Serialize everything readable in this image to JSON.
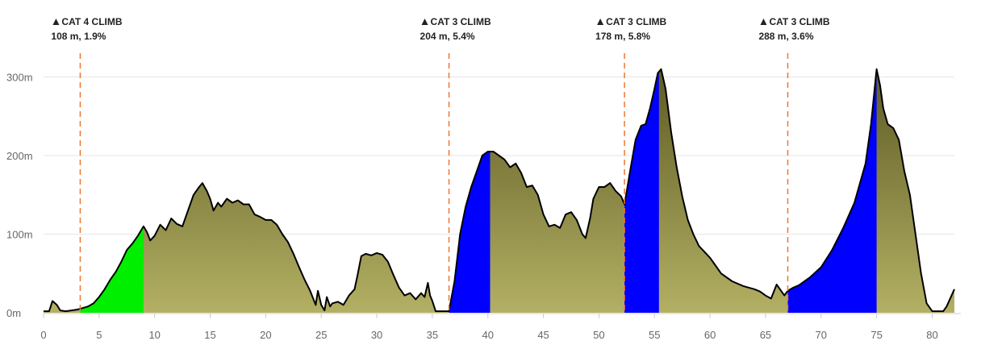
{
  "chart_data": {
    "type": "area",
    "title": "",
    "xlabel": "",
    "ylabel": "",
    "x_unit": "km",
    "y_unit": "m",
    "xlim": [
      0,
      82
    ],
    "ylim": [
      0,
      340
    ],
    "x_ticks": [
      0,
      5,
      10,
      15,
      20,
      25,
      30,
      35,
      40,
      45,
      50,
      55,
      60,
      65,
      70,
      75,
      80
    ],
    "y_ticks": [
      0,
      100,
      200,
      300
    ],
    "y_tick_labels": [
      "0m",
      "100m",
      "200m",
      "300m"
    ],
    "grid": true,
    "colors": {
      "base_fill_top": "#5e5b24",
      "base_fill_bottom": "#b3b064",
      "outline": "#000000",
      "cat4_fill": "#00ee00",
      "cat3_fill": "#0000ff",
      "marker_line": "#ee7733",
      "grid": "#e6e6e6",
      "axis": "#cccccc"
    },
    "elevation_profile": [
      [
        0,
        2
      ],
      [
        0.5,
        2
      ],
      [
        0.8,
        15
      ],
      [
        1.2,
        10
      ],
      [
        1.5,
        3
      ],
      [
        2,
        2
      ],
      [
        3,
        4
      ],
      [
        3.3,
        5
      ],
      [
        4,
        8
      ],
      [
        4.5,
        12
      ],
      [
        5,
        20
      ],
      [
        5.5,
        30
      ],
      [
        6,
        42
      ],
      [
        6.5,
        52
      ],
      [
        7,
        65
      ],
      [
        7.5,
        80
      ],
      [
        8,
        88
      ],
      [
        8.5,
        98
      ],
      [
        9,
        110
      ],
      [
        9.3,
        103
      ],
      [
        9.6,
        92
      ],
      [
        10,
        98
      ],
      [
        10.5,
        112
      ],
      [
        11,
        105
      ],
      [
        11.5,
        120
      ],
      [
        12,
        113
      ],
      [
        12.5,
        110
      ],
      [
        13,
        130
      ],
      [
        13.5,
        150
      ],
      [
        14,
        160
      ],
      [
        14.3,
        165
      ],
      [
        14.7,
        155
      ],
      [
        15,
        145
      ],
      [
        15.3,
        130
      ],
      [
        15.7,
        140
      ],
      [
        16,
        135
      ],
      [
        16.5,
        145
      ],
      [
        17,
        140
      ],
      [
        17.5,
        143
      ],
      [
        18,
        138
      ],
      [
        18.5,
        138
      ],
      [
        19,
        125
      ],
      [
        19.5,
        122
      ],
      [
        20,
        118
      ],
      [
        20.5,
        118
      ],
      [
        21,
        112
      ],
      [
        21.5,
        100
      ],
      [
        22,
        90
      ],
      [
        22.5,
        75
      ],
      [
        23,
        58
      ],
      [
        23.5,
        42
      ],
      [
        24,
        28
      ],
      [
        24.5,
        10
      ],
      [
        24.7,
        28
      ],
      [
        25,
        10
      ],
      [
        25.3,
        3
      ],
      [
        25.5,
        20
      ],
      [
        25.8,
        8
      ],
      [
        26,
        12
      ],
      [
        26.5,
        14
      ],
      [
        27,
        10
      ],
      [
        27.5,
        22
      ],
      [
        28,
        30
      ],
      [
        28.3,
        50
      ],
      [
        28.6,
        72
      ],
      [
        29,
        75
      ],
      [
        29.5,
        73
      ],
      [
        30,
        76
      ],
      [
        30.5,
        74
      ],
      [
        31,
        65
      ],
      [
        31.5,
        48
      ],
      [
        32,
        32
      ],
      [
        32.5,
        22
      ],
      [
        33,
        25
      ],
      [
        33.5,
        17
      ],
      [
        34,
        25
      ],
      [
        34.3,
        20
      ],
      [
        34.6,
        38
      ],
      [
        34.8,
        22
      ],
      [
        35,
        15
      ],
      [
        35.3,
        2
      ],
      [
        36,
        2
      ],
      [
        36.5,
        2
      ],
      [
        37,
        40
      ],
      [
        37.5,
        100
      ],
      [
        38,
        135
      ],
      [
        38.5,
        160
      ],
      [
        39,
        180
      ],
      [
        39.5,
        200
      ],
      [
        40,
        205
      ],
      [
        40.5,
        205
      ],
      [
        41,
        200
      ],
      [
        41.5,
        195
      ],
      [
        42,
        185
      ],
      [
        42.5,
        190
      ],
      [
        43,
        178
      ],
      [
        43.5,
        160
      ],
      [
        44,
        162
      ],
      [
        44.5,
        150
      ],
      [
        45,
        125
      ],
      [
        45.5,
        110
      ],
      [
        46,
        112
      ],
      [
        46.5,
        108
      ],
      [
        47,
        125
      ],
      [
        47.5,
        128
      ],
      [
        48,
        118
      ],
      [
        48.5,
        100
      ],
      [
        48.8,
        95
      ],
      [
        49.2,
        120
      ],
      [
        49.5,
        145
      ],
      [
        50,
        160
      ],
      [
        50.5,
        160
      ],
      [
        51,
        165
      ],
      [
        51.5,
        155
      ],
      [
        52,
        148
      ],
      [
        52.3,
        138
      ],
      [
        52.8,
        180
      ],
      [
        53.3,
        220
      ],
      [
        53.8,
        238
      ],
      [
        54.2,
        240
      ],
      [
        54.6,
        260
      ],
      [
        55,
        285
      ],
      [
        55.3,
        305
      ],
      [
        55.6,
        310
      ],
      [
        56,
        285
      ],
      [
        56.5,
        230
      ],
      [
        57,
        185
      ],
      [
        57.5,
        148
      ],
      [
        58,
        118
      ],
      [
        58.5,
        100
      ],
      [
        59,
        85
      ],
      [
        60,
        70
      ],
      [
        60.5,
        60
      ],
      [
        61,
        50
      ],
      [
        62,
        40
      ],
      [
        63,
        34
      ],
      [
        64,
        30
      ],
      [
        64.5,
        27
      ],
      [
        65,
        22
      ],
      [
        65.5,
        18
      ],
      [
        66,
        36
      ],
      [
        66.3,
        30
      ],
      [
        66.7,
        22
      ],
      [
        67,
        28
      ],
      [
        67.5,
        32
      ],
      [
        68,
        35
      ],
      [
        69,
        45
      ],
      [
        70,
        58
      ],
      [
        71,
        80
      ],
      [
        72,
        108
      ],
      [
        73,
        140
      ],
      [
        74,
        190
      ],
      [
        74.5,
        240
      ],
      [
        75,
        310
      ],
      [
        75.3,
        290
      ],
      [
        75.6,
        260
      ],
      [
        76,
        240
      ],
      [
        76.5,
        235
      ],
      [
        77,
        220
      ],
      [
        77.5,
        180
      ],
      [
        78,
        150
      ],
      [
        78.5,
        100
      ],
      [
        79,
        50
      ],
      [
        79.5,
        12
      ],
      [
        80,
        2
      ],
      [
        81,
        2
      ],
      [
        81.3,
        8
      ],
      [
        82,
        30
      ]
    ],
    "climb_segments": [
      {
        "category": "CAT 4",
        "x_start": 3.3,
        "x_end": 9.0,
        "fill": "#00ee00"
      },
      {
        "category": "CAT 3",
        "x_start": 36.5,
        "x_end": 40.2,
        "fill": "#0000ff"
      },
      {
        "category": "CAT 3",
        "x_start": 52.3,
        "x_end": 55.4,
        "fill": "#0000ff"
      },
      {
        "category": "CAT 3",
        "x_start": 67.0,
        "x_end": 75.0,
        "fill": "#0000ff"
      }
    ],
    "climb_markers": [
      {
        "x": 3.3,
        "title": "CAT 4 CLIMB",
        "stats": "108 m, 1.9%"
      },
      {
        "x": 36.5,
        "title": "CAT 3 CLIMB",
        "stats": "204 m, 5.4%"
      },
      {
        "x": 52.3,
        "title": "CAT 3 CLIMB",
        "stats": "178 m, 5.8%"
      },
      {
        "x": 67.0,
        "title": "CAT 3 CLIMB",
        "stats": "288 m, 3.6%"
      }
    ],
    "marker_icon": "mountain-triangle-icon"
  }
}
